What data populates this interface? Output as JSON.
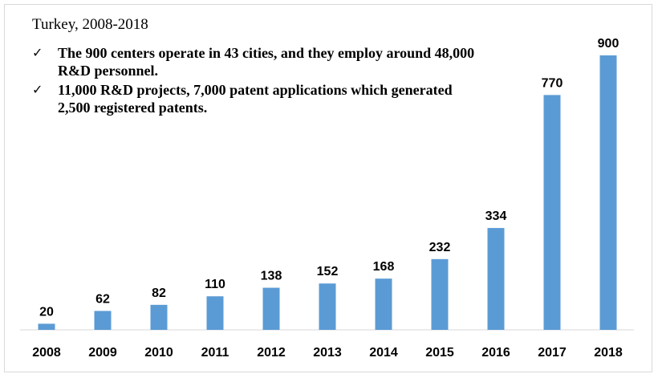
{
  "subtitle": "Turkey, 2008-2018",
  "notes": [
    {
      "check": "✓",
      "text": "The 900 centers operate in 43 cities, and they employ around 48,000 R&D personnel."
    },
    {
      "check": "✓",
      "text": "11,000 R&D projects, 7,000 patent applications which generated 2,500 registered patents."
    }
  ],
  "chart_data": {
    "type": "bar",
    "categories": [
      "2008",
      "2009",
      "2010",
      "2011",
      "2012",
      "2013",
      "2014",
      "2015",
      "2016",
      "2017",
      "2018"
    ],
    "values": [
      20,
      62,
      82,
      110,
      138,
      152,
      168,
      232,
      334,
      770,
      900
    ],
    "ylim": [
      0,
      900
    ],
    "grid": false,
    "bar_color": "#5b9bd5",
    "axis_color": "#d9d9d9"
  }
}
